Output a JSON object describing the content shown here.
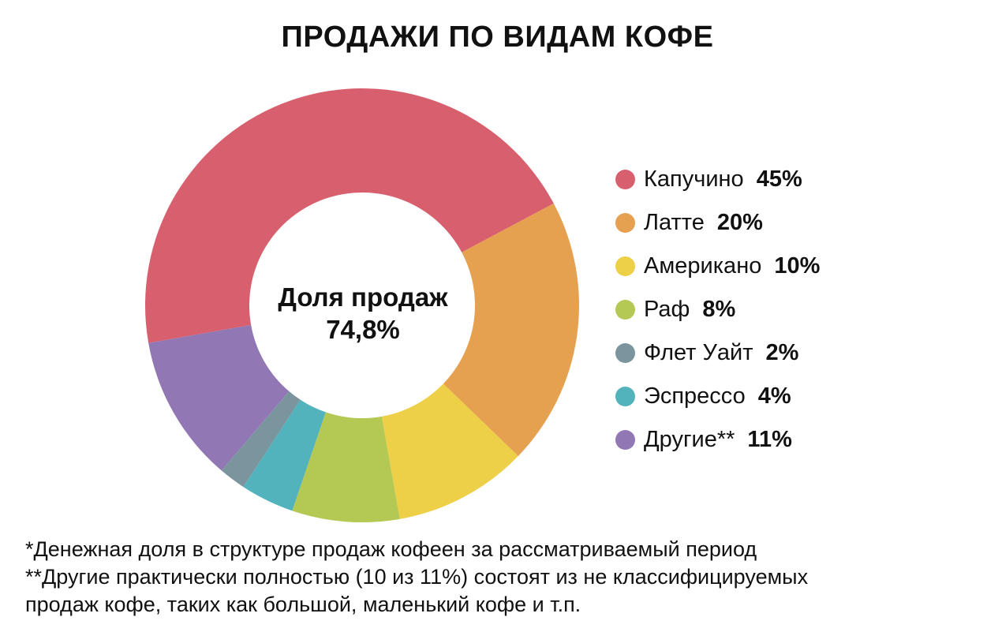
{
  "chart_data": {
    "type": "pie",
    "variant": "donut",
    "title": "ПРОДАЖИ ПО ВИДАМ КОФЕ",
    "center_label": "Доля продаж",
    "center_value": "74,8%",
    "series": [
      {
        "name": "Капучино",
        "value": 45,
        "label": "45%",
        "color": "#D75F6E"
      },
      {
        "name": "Латте",
        "value": 20,
        "label": "20%",
        "color": "#E6A150"
      },
      {
        "name": "Американо",
        "value": 10,
        "label": "10%",
        "color": "#EDCF48"
      },
      {
        "name": "Раф",
        "value": 8,
        "label": "8%",
        "color": "#B4C954"
      },
      {
        "name": "Эспрессо",
        "value": 4,
        "label": "4%",
        "color": "#52B3BC"
      },
      {
        "name": "Флет Уайт",
        "value": 2,
        "label": "2%",
        "color": "#7B959F"
      },
      {
        "name": "Другие**",
        "value": 11,
        "label": "11%",
        "color": "#9177B4"
      }
    ],
    "legend": {
      "position": "right",
      "order": [
        "Капучино",
        "Латте",
        "Американо",
        "Раф",
        "Флет Уайт",
        "Эспрессо",
        "Другие**"
      ]
    }
  },
  "footnotes": [
    "*Денежная доля в структуре продаж кофеен за рассматриваемый период",
    "**Другие практически полностью (10 из 11%) состоят из не классифицируемых",
    "продаж кофе, таких как большой, маленький кофе и т.п."
  ]
}
